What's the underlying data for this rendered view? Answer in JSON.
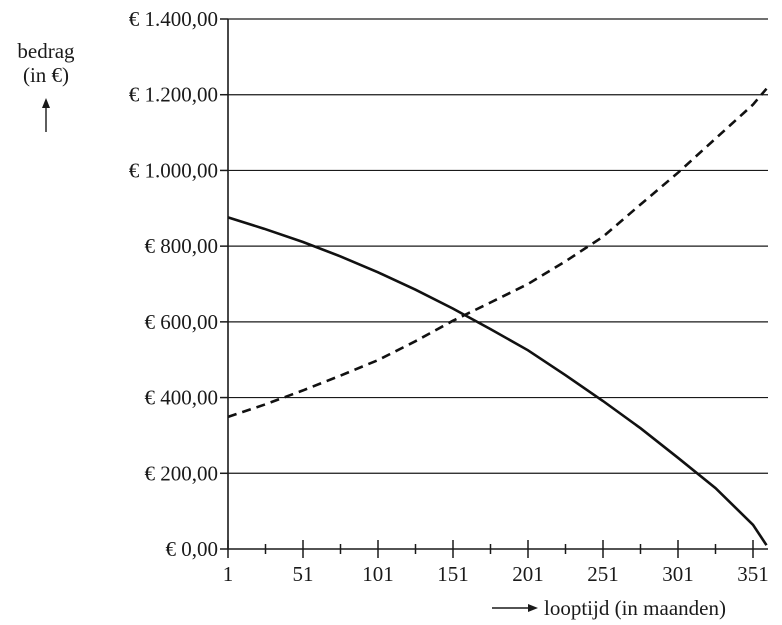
{
  "chart_data": {
    "type": "line",
    "ylabel": [
      "bedrag",
      "(in €)"
    ],
    "xlabel": "looptijd (in maanden)",
    "ylim": [
      0,
      1400
    ],
    "xlim": [
      1,
      361
    ],
    "yticks": [
      0,
      200,
      400,
      600,
      800,
      1000,
      1200,
      1400
    ],
    "ytick_labels": [
      "€ 0,00",
      "€ 200,00",
      "€ 400,00",
      "€ 600,00",
      "€ 800,00",
      "€ 1.000,00",
      "€ 1.200,00",
      "€ 1.400,00"
    ],
    "xticks": [
      1,
      51,
      101,
      151,
      201,
      251,
      301,
      351
    ],
    "xtick_labels": [
      "1",
      "51",
      "101",
      "151",
      "201",
      "251",
      "301",
      "351"
    ],
    "x_minor_step": 25,
    "grid": "horizontal",
    "series": [
      {
        "style": "solid",
        "x": [
          1,
          25,
          51,
          76,
          101,
          126,
          151,
          176,
          201,
          226,
          251,
          276,
          301,
          326,
          351,
          360
        ],
        "y": [
          876,
          846,
          811,
          773,
          731,
          685,
          635,
          581,
          525,
          459,
          391,
          319,
          241,
          161,
          64,
          10
        ]
      },
      {
        "style": "dashed",
        "x": [
          1,
          25,
          51,
          76,
          101,
          126,
          151,
          176,
          201,
          226,
          251,
          276,
          301,
          326,
          351,
          360
        ],
        "y": [
          349,
          381,
          419,
          458,
          499,
          549,
          603,
          651,
          700,
          760,
          825,
          910,
          994,
          1084,
          1174,
          1216
        ]
      }
    ]
  }
}
